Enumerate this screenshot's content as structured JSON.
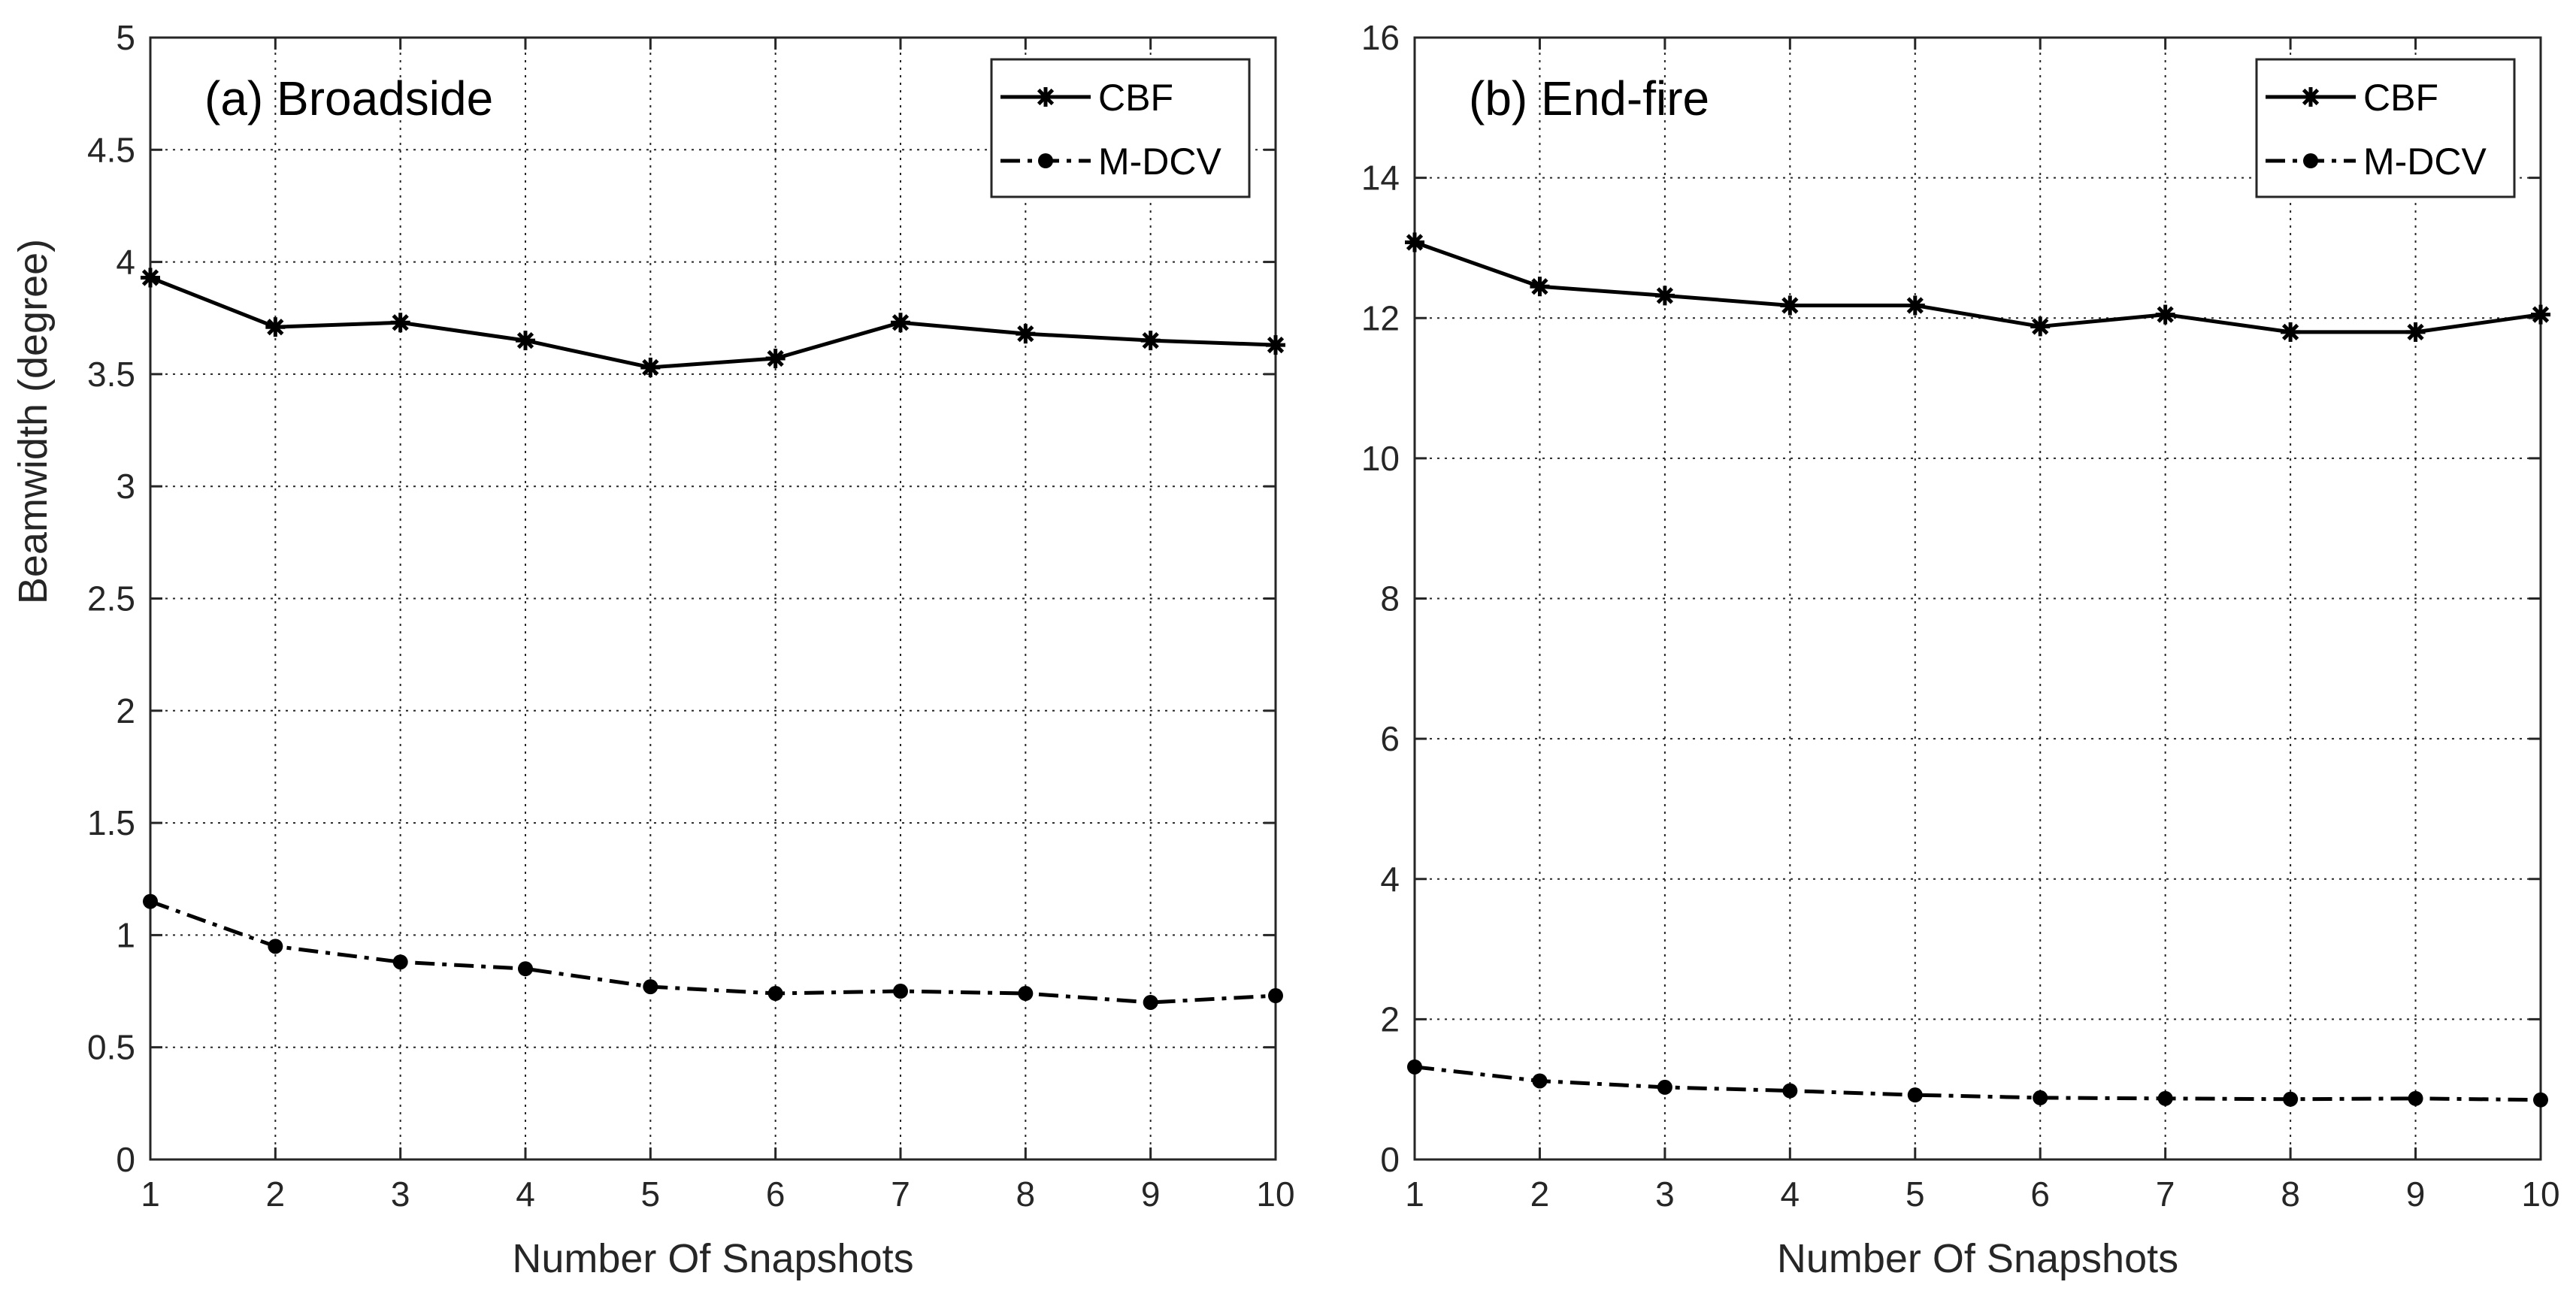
{
  "figure": {
    "ylabel": "Beamwidth (degree)"
  },
  "chart_data": [
    {
      "type": "line",
      "title": "(a) Broadside",
      "xlabel": "Number Of Snapshots",
      "ylabel": "Beamwidth (degree)",
      "x": [
        1,
        2,
        3,
        4,
        5,
        6,
        7,
        8,
        9,
        10
      ],
      "xlim": [
        1,
        10
      ],
      "ylim": [
        0,
        5
      ],
      "xticks": [
        "1",
        "2",
        "3",
        "4",
        "5",
        "6",
        "7",
        "8",
        "9",
        "10"
      ],
      "yticks": [
        "0",
        "0.5",
        "1",
        "1.5",
        "2",
        "2.5",
        "3",
        "3.5",
        "4",
        "4.5",
        "5"
      ],
      "grid": true,
      "legend_position": "top-right",
      "series": [
        {
          "name": "CBF",
          "style": "solid",
          "marker": "asterisk",
          "values": [
            3.93,
            3.71,
            3.73,
            3.65,
            3.53,
            3.57,
            3.73,
            3.68,
            3.65,
            3.63
          ]
        },
        {
          "name": "M-DCV",
          "style": "dash-dot",
          "marker": "dot",
          "values": [
            1.15,
            0.95,
            0.88,
            0.85,
            0.77,
            0.74,
            0.75,
            0.74,
            0.7,
            0.73
          ]
        }
      ]
    },
    {
      "type": "line",
      "title": "(b) End-fire",
      "xlabel": "Number Of Snapshots",
      "ylabel": "",
      "x": [
        1,
        2,
        3,
        4,
        5,
        6,
        7,
        8,
        9,
        10
      ],
      "xlim": [
        1,
        10
      ],
      "ylim": [
        0,
        16
      ],
      "xticks": [
        "1",
        "2",
        "3",
        "4",
        "5",
        "6",
        "7",
        "8",
        "9",
        "10"
      ],
      "yticks": [
        "0",
        "2",
        "4",
        "6",
        "8",
        "10",
        "12",
        "14",
        "16"
      ],
      "grid": true,
      "legend_position": "top-right",
      "series": [
        {
          "name": "CBF",
          "style": "solid",
          "marker": "asterisk",
          "values": [
            13.08,
            12.45,
            12.32,
            12.18,
            12.18,
            11.88,
            12.05,
            11.8,
            11.8,
            12.05
          ]
        },
        {
          "name": "M-DCV",
          "style": "dash-dot",
          "marker": "dot",
          "values": [
            1.32,
            1.12,
            1.03,
            0.98,
            0.92,
            0.88,
            0.87,
            0.86,
            0.87,
            0.85
          ]
        }
      ]
    }
  ]
}
